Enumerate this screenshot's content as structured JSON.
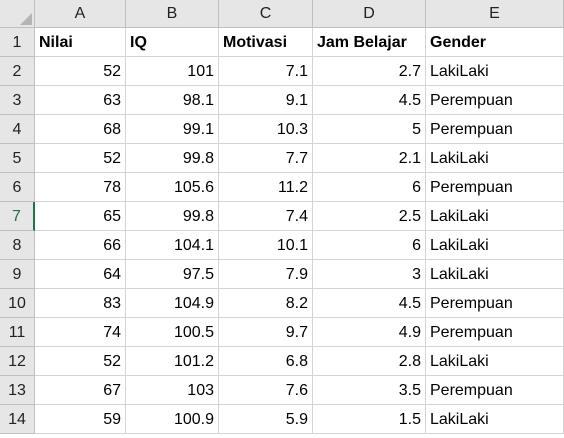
{
  "columns": [
    "A",
    "B",
    "C",
    "D",
    "E"
  ],
  "row_numbers": [
    "1",
    "2",
    "3",
    "4",
    "5",
    "6",
    "7",
    "8",
    "9",
    "10",
    "11",
    "12",
    "13",
    "14"
  ],
  "active_row": 6,
  "headers": [
    "Nilai",
    "IQ",
    "Motivasi",
    "Jam Belajar",
    "Gender"
  ],
  "rows": [
    [
      "52",
      "101",
      "7.1",
      "2.7",
      "LakiLaki"
    ],
    [
      "63",
      "98.1",
      "9.1",
      "4.5",
      "Perempuan"
    ],
    [
      "68",
      "99.1",
      "10.3",
      "5",
      "Perempuan"
    ],
    [
      "52",
      "99.8",
      "7.7",
      "2.1",
      "LakiLaki"
    ],
    [
      "78",
      "105.6",
      "11.2",
      "6",
      "Perempuan"
    ],
    [
      "65",
      "99.8",
      "7.4",
      "2.5",
      "LakiLaki"
    ],
    [
      "66",
      "104.1",
      "10.1",
      "6",
      "LakiLaki"
    ],
    [
      "64",
      "97.5",
      "7.9",
      "3",
      "LakiLaki"
    ],
    [
      "83",
      "104.9",
      "8.2",
      "4.5",
      "Perempuan"
    ],
    [
      "74",
      "100.5",
      "9.7",
      "4.9",
      "Perempuan"
    ],
    [
      "52",
      "101.2",
      "6.8",
      "2.8",
      "LakiLaki"
    ],
    [
      "67",
      "103",
      "7.6",
      "3.5",
      "Perempuan"
    ],
    [
      "59",
      "100.9",
      "5.9",
      "1.5",
      "LakiLaki"
    ]
  ],
  "colors": {
    "header_bg": "#e6e6e6",
    "gridline": "#d4d4d4",
    "active_accent": "#217346"
  }
}
